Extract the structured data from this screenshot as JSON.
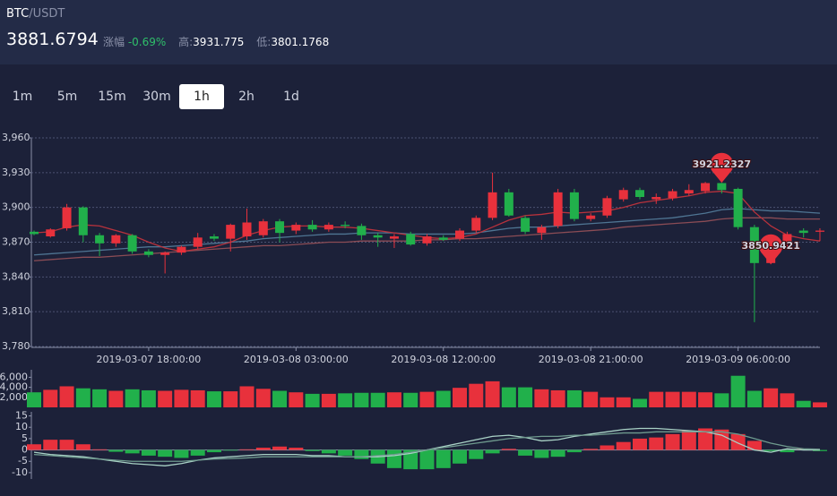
{
  "header": {
    "base": "BTC",
    "quote": "/USDT",
    "price": "3881.6794",
    "change_label": "涨幅",
    "change": "-0.69%",
    "high_label": "高:",
    "high": "3931.775",
    "low_label": "低:",
    "low": "3801.1768"
  },
  "intervals": [
    "1m",
    "5m",
    "15m",
    "30m",
    "1h",
    "2h",
    "1d"
  ],
  "active_interval": "1h",
  "chart_data": [
    {
      "type": "candlestick",
      "up_color": "#e8313c",
      "down_color": "#21b04b",
      "grid": true,
      "x": [
        "2019-03-07 11:00:00",
        "2019-03-07 12:00:00",
        "2019-03-07 13:00:00",
        "2019-03-07 14:00:00",
        "2019-03-07 15:00:00",
        "2019-03-07 16:00:00",
        "2019-03-07 17:00:00",
        "2019-03-07 18:00:00",
        "2019-03-07 19:00:00",
        "2019-03-07 20:00:00",
        "2019-03-07 21:00:00",
        "2019-03-07 22:00:00",
        "2019-03-07 23:00:00",
        "2019-03-08 00:00:00",
        "2019-03-08 01:00:00",
        "2019-03-08 02:00:00",
        "2019-03-08 03:00:00",
        "2019-03-08 04:00:00",
        "2019-03-08 05:00:00",
        "2019-03-08 06:00:00",
        "2019-03-08 07:00:00",
        "2019-03-08 08:00:00",
        "2019-03-08 09:00:00",
        "2019-03-08 10:00:00",
        "2019-03-08 11:00:00",
        "2019-03-08 12:00:00",
        "2019-03-08 13:00:00",
        "2019-03-08 14:00:00",
        "2019-03-08 15:00:00",
        "2019-03-08 16:00:00",
        "2019-03-08 17:00:00",
        "2019-03-08 18:00:00",
        "2019-03-08 19:00:00",
        "2019-03-08 20:00:00",
        "2019-03-08 21:00:00",
        "2019-03-08 22:00:00",
        "2019-03-08 23:00:00",
        "2019-03-09 00:00:00",
        "2019-03-09 01:00:00",
        "2019-03-09 02:00:00",
        "2019-03-09 03:00:00",
        "2019-03-09 04:00:00",
        "2019-03-09 05:00:00",
        "2019-03-09 06:00:00",
        "2019-03-09 07:00:00",
        "2019-03-09 08:00:00",
        "2019-03-09 09:00:00",
        "2019-03-09 10:00:00",
        "2019-03-09 11:00:00"
      ],
      "candles": [
        [
          3879,
          3880,
          3876,
          3877
        ],
        [
          3875,
          3882,
          3874,
          3881
        ],
        [
          3882,
          3903,
          3880,
          3900
        ],
        [
          3900,
          3901,
          3870,
          3876
        ],
        [
          3876,
          3878,
          3858,
          3869
        ],
        [
          3869,
          3877,
          3866,
          3876
        ],
        [
          3876,
          3877,
          3860,
          3862
        ],
        [
          3862,
          3864,
          3857,
          3859
        ],
        [
          3859,
          3862,
          3843,
          3861
        ],
        [
          3861,
          3867,
          3859,
          3866
        ],
        [
          3866,
          3878,
          3864,
          3874
        ],
        [
          3875,
          3877,
          3871,
          3873
        ],
        [
          3873,
          3886,
          3862,
          3885
        ],
        [
          3875,
          3899,
          3872,
          3887
        ],
        [
          3876,
          3890,
          3874,
          3888
        ],
        [
          3888,
          3890,
          3870,
          3878
        ],
        [
          3880,
          3887,
          3877,
          3885
        ],
        [
          3885,
          3889,
          3879,
          3881
        ],
        [
          3881,
          3887,
          3879,
          3885
        ],
        [
          3885,
          3888,
          3882,
          3884
        ],
        [
          3884,
          3886,
          3872,
          3876
        ],
        [
          3876,
          3878,
          3866,
          3874
        ],
        [
          3873,
          3877,
          3865,
          3875
        ],
        [
          3877,
          3879,
          3867,
          3868
        ],
        [
          3869,
          3877,
          3867,
          3875
        ],
        [
          3874,
          3876,
          3871,
          3872
        ],
        [
          3873,
          3882,
          3871,
          3880
        ],
        [
          3880,
          3893,
          3878,
          3891
        ],
        [
          3891,
          3930,
          3889,
          3913
        ],
        [
          3913,
          3916,
          3892,
          3893
        ],
        [
          3891,
          3893,
          3877,
          3879
        ],
        [
          3878,
          3885,
          3872,
          3883
        ],
        [
          3884,
          3916,
          3882,
          3913
        ],
        [
          3913,
          3916,
          3888,
          3890
        ],
        [
          3890,
          3895,
          3888,
          3893
        ],
        [
          3893,
          3910,
          3891,
          3908
        ],
        [
          3907,
          3917,
          3905,
          3915
        ],
        [
          3915,
          3917,
          3907,
          3909
        ],
        [
          3907,
          3912,
          3903,
          3909
        ],
        [
          3908,
          3916,
          3906,
          3914
        ],
        [
          3912,
          3920,
          3910,
          3915
        ],
        [
          3914,
          3922,
          3912,
          3921
        ],
        [
          3921,
          3921.2327,
          3912,
          3915
        ],
        [
          3916,
          3917,
          3881,
          3883
        ],
        [
          3883,
          3885,
          3801,
          3852
        ],
        [
          3852,
          3872,
          3850.9421,
          3870
        ],
        [
          3870,
          3879,
          3864,
          3877
        ],
        [
          3880,
          3882,
          3874,
          3878
        ],
        [
          3879,
          3882,
          3871,
          3880
        ]
      ],
      "series": [
        {
          "color": "#4f7593",
          "values": [
            3859,
            3860,
            3861,
            3862,
            3863,
            3864,
            3865,
            3866,
            3866,
            3867,
            3868,
            3869,
            3870,
            3871,
            3873,
            3874,
            3875,
            3876,
            3877,
            3877,
            3878,
            3878,
            3878,
            3877,
            3877,
            3877,
            3877,
            3878,
            3880,
            3882,
            3883,
            3883,
            3884,
            3885,
            3886,
            3887,
            3888,
            3889,
            3890,
            3891,
            3893,
            3895,
            3898,
            3899,
            3898,
            3897,
            3897,
            3896,
            3895
          ]
        },
        {
          "color": "#8b4c55",
          "values": [
            3854,
            3855,
            3856,
            3857,
            3857,
            3858,
            3859,
            3860,
            3861,
            3862,
            3863,
            3864,
            3865,
            3866,
            3867,
            3867,
            3868,
            3869,
            3870,
            3870,
            3871,
            3871,
            3871,
            3871,
            3872,
            3872,
            3873,
            3873,
            3874,
            3875,
            3876,
            3877,
            3878,
            3879,
            3880,
            3881,
            3883,
            3884,
            3885,
            3886,
            3887,
            3888,
            3890,
            3891,
            3891,
            3891,
            3890,
            3890,
            3890
          ]
        },
        {
          "color": "#b8323c",
          "values": [
            3878,
            3879,
            3883,
            3885,
            3884,
            3880,
            3876,
            3870,
            3865,
            3862,
            3864,
            3866,
            3870,
            3876,
            3880,
            3883,
            3884,
            3884,
            3883,
            3883,
            3882,
            3880,
            3878,
            3876,
            3874,
            3873,
            3874,
            3877,
            3883,
            3889,
            3893,
            3894,
            3896,
            3895,
            3896,
            3897,
            3900,
            3904,
            3906,
            3908,
            3910,
            3913,
            3914,
            3912,
            3896,
            3884,
            3876,
            3873,
            3871
          ]
        }
      ],
      "markers": [
        {
          "x": "2019-03-09 05:00:00",
          "value": 3921.2327
        },
        {
          "x": "2019-03-09 08:00:00",
          "value": 3850.9421
        }
      ],
      "ylim": [
        3780,
        3960
      ],
      "yticks": [
        {
          "value": 3780,
          "label": "3,780"
        },
        {
          "value": 3810,
          "label": "3,810"
        },
        {
          "value": 3840,
          "label": "3,840"
        },
        {
          "value": 3870,
          "label": "3,870"
        },
        {
          "value": 3900,
          "label": "3,900"
        },
        {
          "value": 3930,
          "label": "3,930"
        },
        {
          "value": 3960,
          "label": "3,960"
        }
      ],
      "xticks": [
        "2019-03-07 18:00:00",
        "2019-03-08 03:00:00",
        "2019-03-08 12:00:00",
        "2019-03-08 21:00:00",
        "2019-03-09 06:00:00"
      ]
    },
    {
      "type": "volume",
      "values": [
        3000,
        3500,
        4200,
        3800,
        3600,
        3300,
        3600,
        3400,
        3300,
        3500,
        3400,
        3200,
        3200,
        4200,
        3700,
        3300,
        3000,
        2700,
        2700,
        2800,
        2900,
        2900,
        3000,
        2900,
        3100,
        3300,
        3900,
        4700,
        5200,
        4000,
        4000,
        3600,
        3400,
        3400,
        3100,
        2000,
        2000,
        1700,
        3100,
        3100,
        3100,
        3000,
        2800,
        6300,
        3300,
        3800,
        2800,
        1300,
        1000
      ],
      "ylim": [
        0,
        7500
      ],
      "yticks": [
        {
          "value": 2000,
          "label": "2,000"
        },
        {
          "value": 4000,
          "label": "4,000"
        },
        {
          "value": 6000,
          "label": "6,000"
        }
      ]
    },
    {
      "type": "macd",
      "values": [
        2.5,
        4.5,
        4.5,
        2.5,
        0.3,
        -0.8,
        -1.5,
        -2.5,
        -3,
        -3.5,
        -2.5,
        -1,
        -0.3,
        0.3,
        1,
        1.5,
        1,
        -0.5,
        -1.5,
        -2.5,
        -4,
        -6,
        -8,
        -8.5,
        -8.5,
        -8,
        -6,
        -4,
        -1.5,
        0.5,
        -2.5,
        -3.5,
        -3,
        -1,
        0.5,
        2,
        3.5,
        5,
        5.5,
        7,
        8.5,
        9.5,
        9,
        7,
        4,
        -0.5,
        -1,
        0.5,
        -0.5
      ],
      "series": [
        {
          "color": "#a9d2c6",
          "values": [
            -1,
            -2,
            -2.5,
            -3,
            -4,
            -5,
            -6,
            -6.5,
            -7,
            -6,
            -4.5,
            -3.5,
            -3,
            -2.5,
            -2,
            -2,
            -2,
            -2.5,
            -2.5,
            -3,
            -3,
            -3,
            -2.5,
            -1.5,
            0,
            1.5,
            3,
            4.5,
            6,
            6.5,
            5.5,
            4,
            4.5,
            6,
            7,
            8,
            9,
            9.5,
            9.5,
            9,
            8.5,
            8,
            6.5,
            3,
            0,
            -1,
            0.5,
            0,
            0
          ]
        },
        {
          "color": "#6f9a8e",
          "values": [
            -2,
            -2.5,
            -3,
            -3.5,
            -4,
            -4.5,
            -5,
            -5,
            -5,
            -5,
            -4.5,
            -4,
            -3.8,
            -3.5,
            -3,
            -3,
            -3,
            -3,
            -3,
            -3,
            -3,
            -2.5,
            -2,
            -1,
            0,
            1,
            2,
            3,
            4,
            5,
            5.5,
            6,
            6,
            6.5,
            6.5,
            7,
            7.5,
            7.5,
            8,
            8,
            8,
            8,
            8,
            7,
            5,
            3,
            1.5,
            0.5,
            0.3
          ]
        }
      ],
      "ylim": [
        -12.8,
        16.8
      ],
      "yticks": [
        15,
        10,
        5,
        0,
        -5,
        -10
      ]
    }
  ]
}
